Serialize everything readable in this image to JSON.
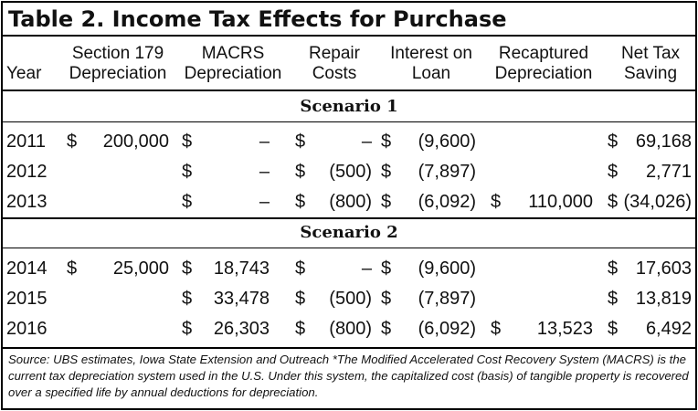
{
  "title": "Table 2. Income Tax Effects for Purchase",
  "headers": {
    "year": [
      "Year"
    ],
    "sec179": [
      "Section 179",
      "Depreciation"
    ],
    "macrs": [
      "MACRS",
      "Depreciation"
    ],
    "repair": [
      "Repair",
      "Costs"
    ],
    "interest": [
      "Interest on",
      "Loan"
    ],
    "recap": [
      "Recaptured",
      "Depreciation"
    ],
    "net": [
      "Net Tax",
      "Saving"
    ]
  },
  "scenarios": [
    {
      "label": "Scenario 1",
      "rows": [
        {
          "year": "2011",
          "sec179_cur": "$",
          "sec179": "200,000",
          "macrs_cur": "$",
          "macrs": "–",
          "repair_cur": "$",
          "repair": "–",
          "interest_cur": "$",
          "interest": "(9,600)",
          "recap_cur": "",
          "recap": "",
          "net_cur": "$",
          "net": "69,168"
        },
        {
          "year": "2012",
          "sec179_cur": "",
          "sec179": "",
          "macrs_cur": "$",
          "macrs": "–",
          "repair_cur": "$",
          "repair": "(500)",
          "interest_cur": "$",
          "interest": "(7,897)",
          "recap_cur": "",
          "recap": "",
          "net_cur": "$",
          "net": "2,771"
        },
        {
          "year": "2013",
          "sec179_cur": "",
          "sec179": "",
          "macrs_cur": "$",
          "macrs": "–",
          "repair_cur": "$",
          "repair": "(800)",
          "interest_cur": "$",
          "interest": "(6,092)",
          "recap_cur": "$",
          "recap": "110,000",
          "net_cur": "$",
          "net": "(34,026)"
        }
      ]
    },
    {
      "label": "Scenario 2",
      "rows": [
        {
          "year": "2014",
          "sec179_cur": "$",
          "sec179": "25,000",
          "macrs_cur": "$",
          "macrs": "18,743",
          "repair_cur": "$",
          "repair": "–",
          "interest_cur": "$",
          "interest": "(9,600)",
          "recap_cur": "",
          "recap": "",
          "net_cur": "$",
          "net": "17,603"
        },
        {
          "year": "2015",
          "sec179_cur": "",
          "sec179": "",
          "macrs_cur": "$",
          "macrs": "33,478",
          "repair_cur": "$",
          "repair": "(500)",
          "interest_cur": "$",
          "interest": "(7,897)",
          "recap_cur": "",
          "recap": "",
          "net_cur": "$",
          "net": "13,819"
        },
        {
          "year": "2016",
          "sec179_cur": "",
          "sec179": "",
          "macrs_cur": "$",
          "macrs": "26,303",
          "repair_cur": "$",
          "repair": "(800)",
          "interest_cur": "$",
          "interest": "(6,092)",
          "recap_cur": "$",
          "recap": "13,523",
          "net_cur": "$",
          "net": "6,492"
        }
      ]
    }
  ],
  "footer": "Source: UBS estimates, Iowa State Extension and Outreach  *The Modified Accelerated Cost Recovery System (MACRS) is the current tax depreciation system used in the U.S. Under this system, the capitalized cost (basis) of tangible property is recovered over a specified life by annual deductions for depreciation."
}
